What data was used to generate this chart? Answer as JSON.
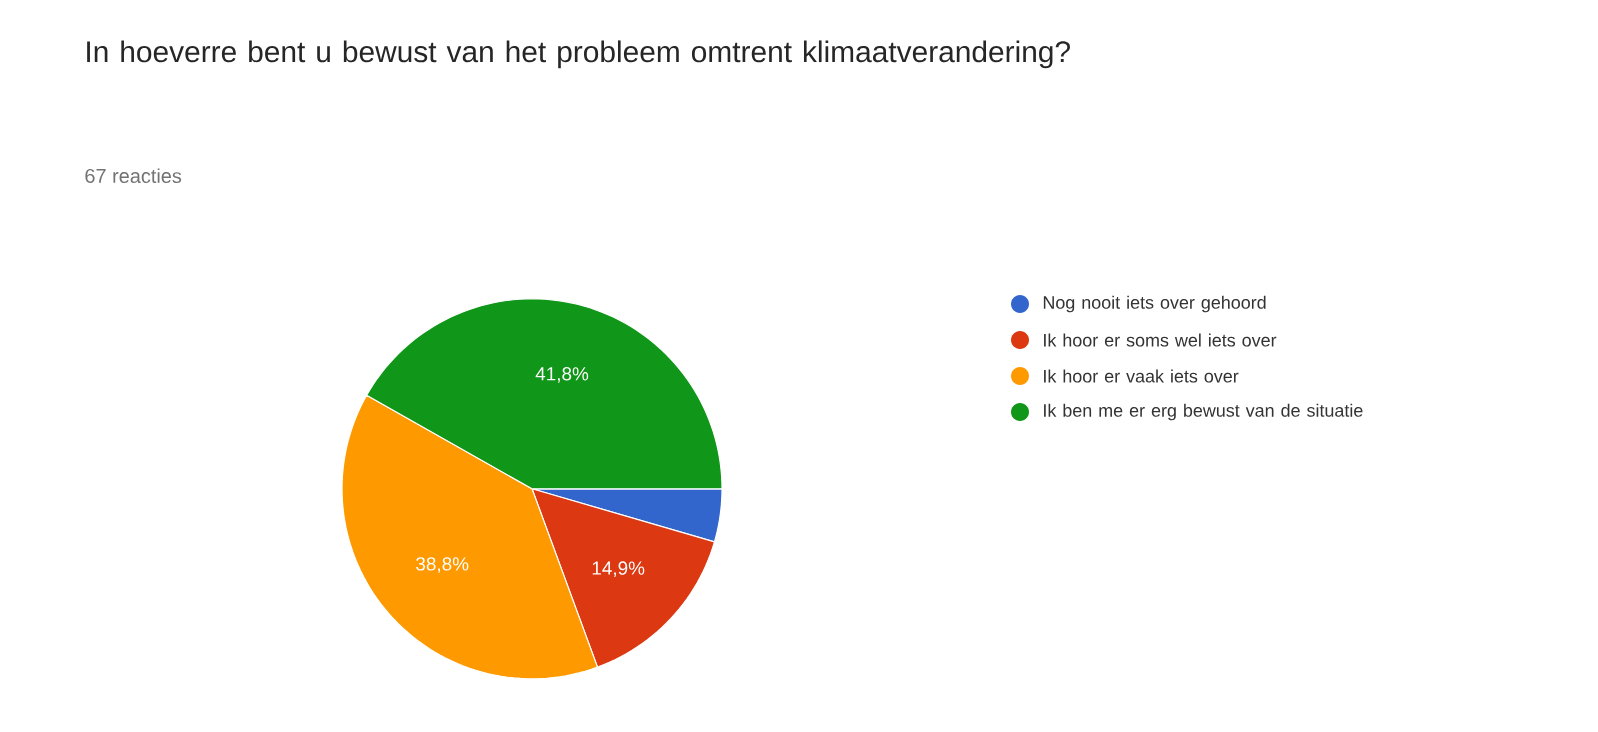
{
  "chart_data": {
    "type": "pie",
    "title": "In hoeverre bent u bewust van het probleem omtrent klimaatverandering?",
    "subtitle": "67 reacties",
    "categories": [
      "Nog nooit iets over gehoord",
      "Ik hoor er soms wel iets over",
      "Ik hoor er vaak iets over",
      "Ik ben me er erg bewust van de situatie"
    ],
    "values": [
      4.5,
      14.9,
      38.8,
      41.8
    ],
    "colors": [
      "#3366cc",
      "#dc3912",
      "#ff9900",
      "#109618"
    ],
    "value_labels": [
      null,
      "14,9%",
      "38,8%",
      "41,8%"
    ],
    "legend": "right"
  }
}
